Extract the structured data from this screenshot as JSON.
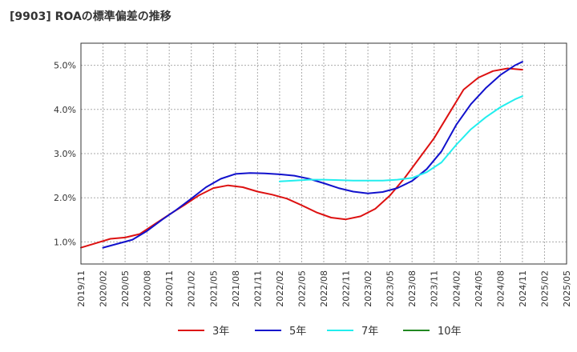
{
  "title": "[9903]  ROAの標準偏差の推移",
  "chart_data": {
    "type": "line",
    "title": "[9903]  ROAの標準偏差の推移",
    "xlabel": "",
    "ylabel": "",
    "x_ticks": [
      "2019/11",
      "2020/02",
      "2020/05",
      "2020/08",
      "2020/11",
      "2021/02",
      "2021/05",
      "2021/08",
      "2021/11",
      "2022/02",
      "2022/05",
      "2022/08",
      "2022/11",
      "2023/02",
      "2023/05",
      "2023/08",
      "2023/11",
      "2024/02",
      "2024/05",
      "2024/08",
      "2024/11",
      "2025/02",
      "2025/05"
    ],
    "y_ticks": [
      "1.0%",
      "2.0%",
      "3.0%",
      "4.0%",
      "5.0%"
    ],
    "ylim": [
      0.5,
      5.5
    ],
    "grid": true,
    "legend_position": "bottom",
    "series": [
      {
        "name": "3年",
        "color": "#dd1111",
        "points": [
          [
            "2019/11",
            0.87
          ],
          [
            "2020/01",
            0.97
          ],
          [
            "2020/03",
            1.07
          ],
          [
            "2020/05",
            1.1
          ],
          [
            "2020/07",
            1.18
          ],
          [
            "2020/09",
            1.4
          ],
          [
            "2020/11",
            1.62
          ],
          [
            "2021/01",
            1.83
          ],
          [
            "2021/03",
            2.05
          ],
          [
            "2021/05",
            2.22
          ],
          [
            "2021/07",
            2.28
          ],
          [
            "2021/09",
            2.24
          ],
          [
            "2021/11",
            2.14
          ],
          [
            "2022/01",
            2.07
          ],
          [
            "2022/03",
            1.98
          ],
          [
            "2022/05",
            1.83
          ],
          [
            "2022/07",
            1.67
          ],
          [
            "2022/09",
            1.55
          ],
          [
            "2022/11",
            1.51
          ],
          [
            "2023/01",
            1.58
          ],
          [
            "2023/03",
            1.75
          ],
          [
            "2023/05",
            2.05
          ],
          [
            "2023/07",
            2.45
          ],
          [
            "2023/09",
            2.9
          ],
          [
            "2023/11",
            3.35
          ],
          [
            "2024/01",
            3.9
          ],
          [
            "2024/03",
            4.45
          ],
          [
            "2024/05",
            4.72
          ],
          [
            "2024/07",
            4.87
          ],
          [
            "2024/09",
            4.93
          ],
          [
            "2024/11",
            4.9
          ]
        ]
      },
      {
        "name": "5年",
        "color": "#1111cc",
        "points": [
          [
            "2020/02",
            0.87
          ],
          [
            "2020/04",
            0.96
          ],
          [
            "2020/06",
            1.05
          ],
          [
            "2020/08",
            1.25
          ],
          [
            "2020/10",
            1.5
          ],
          [
            "2020/12",
            1.73
          ],
          [
            "2021/02",
            1.98
          ],
          [
            "2021/04",
            2.24
          ],
          [
            "2021/06",
            2.43
          ],
          [
            "2021/08",
            2.54
          ],
          [
            "2021/10",
            2.56
          ],
          [
            "2021/12",
            2.55
          ],
          [
            "2022/02",
            2.53
          ],
          [
            "2022/04",
            2.5
          ],
          [
            "2022/06",
            2.43
          ],
          [
            "2022/08",
            2.33
          ],
          [
            "2022/10",
            2.22
          ],
          [
            "2022/12",
            2.14
          ],
          [
            "2023/02",
            2.1
          ],
          [
            "2023/04",
            2.13
          ],
          [
            "2023/06",
            2.22
          ],
          [
            "2023/08",
            2.38
          ],
          [
            "2023/10",
            2.65
          ],
          [
            "2023/12",
            3.05
          ],
          [
            "2024/02",
            3.65
          ],
          [
            "2024/04",
            4.12
          ],
          [
            "2024/06",
            4.48
          ],
          [
            "2024/08",
            4.78
          ],
          [
            "2024/10",
            5.0
          ],
          [
            "2024/11",
            5.08
          ]
        ]
      },
      {
        "name": "7年",
        "color": "#22eeee",
        "points": [
          [
            "2022/02",
            2.37
          ],
          [
            "2022/04",
            2.39
          ],
          [
            "2022/06",
            2.41
          ],
          [
            "2022/08",
            2.41
          ],
          [
            "2022/10",
            2.4
          ],
          [
            "2022/12",
            2.39
          ],
          [
            "2023/02",
            2.39
          ],
          [
            "2023/04",
            2.39
          ],
          [
            "2023/06",
            2.41
          ],
          [
            "2023/08",
            2.45
          ],
          [
            "2023/10",
            2.58
          ],
          [
            "2023/12",
            2.8
          ],
          [
            "2024/02",
            3.2
          ],
          [
            "2024/04",
            3.55
          ],
          [
            "2024/06",
            3.82
          ],
          [
            "2024/08",
            4.05
          ],
          [
            "2024/10",
            4.23
          ],
          [
            "2024/11",
            4.3
          ]
        ]
      },
      {
        "name": "10年",
        "color": "#228822",
        "points": []
      }
    ]
  }
}
